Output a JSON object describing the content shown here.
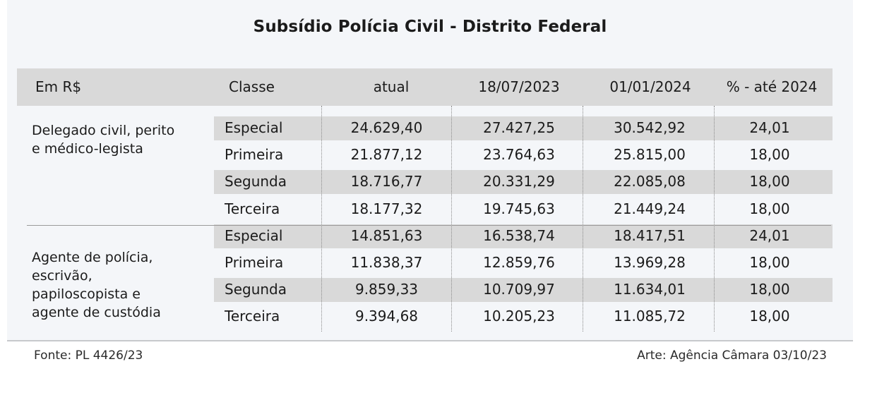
{
  "title": "Subsídio Polícia Civil - Distrito Federal",
  "header": {
    "unit": "Em R$",
    "classe": "Classe",
    "atual": "atual",
    "d1": "18/07/2023",
    "d2": "01/01/2024",
    "pct": "% - até 2024"
  },
  "groups": [
    {
      "label_lines": [
        "Delegado civil, perito",
        "e médico-legista"
      ],
      "rows": [
        {
          "classe": "Especial",
          "atual": "24.629,40",
          "d1": "27.427,25",
          "d2": "30.542,92",
          "pct": "24,01"
        },
        {
          "classe": "Primeira",
          "atual": "21.877,12",
          "d1": "23.764,63",
          "d2": "25.815,00",
          "pct": "18,00"
        },
        {
          "classe": "Segunda",
          "atual": "18.716,77",
          "d1": "20.331,29",
          "d2": "22.085,08",
          "pct": "18,00"
        },
        {
          "classe": "Terceira",
          "atual": "18.177,32",
          "d1": "19.745,63",
          "d2": "21.449,24",
          "pct": "18,00"
        }
      ]
    },
    {
      "label_lines": [
        "Agente de polícia,",
        "escrivão,",
        "papiloscopista e",
        "agente de custódia"
      ],
      "rows": [
        {
          "classe": "Especial",
          "atual": "14.851,63",
          "d1": "16.538,74",
          "d2": "18.417,51",
          "pct": "24,01"
        },
        {
          "classe": "Primeira",
          "atual": "11.838,37",
          "d1": "12.859,76",
          "d2": "13.969,28",
          "pct": "18,00"
        },
        {
          "classe": "Segunda",
          "atual": "9.859,33",
          "d1": "10.709,97",
          "d2": "11.634,01",
          "pct": "18,00"
        },
        {
          "classe": "Terceira",
          "atual": "9.394,68",
          "d1": "10.205,23",
          "d2": "11.085,72",
          "pct": "18,00"
        }
      ]
    }
  ],
  "footer": {
    "source": "Fonte: PL 4426/23",
    "credit": "Arte: Agência Câmara 03/10/23"
  }
}
